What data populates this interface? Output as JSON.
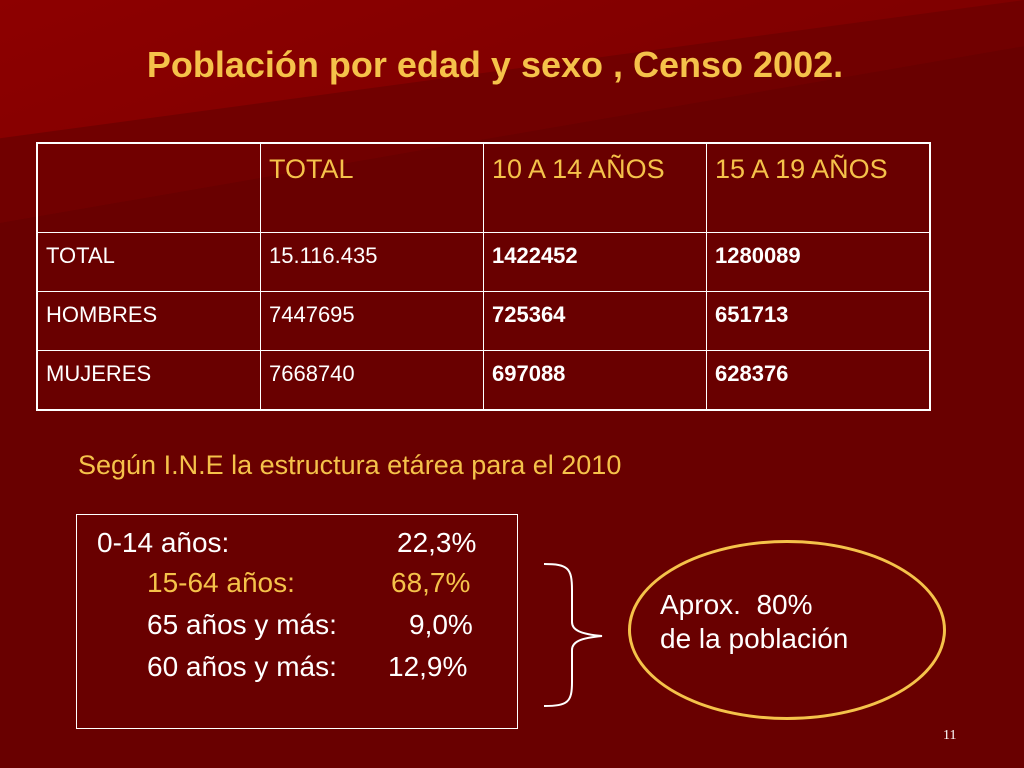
{
  "slide": {
    "title": "Población por edad y sexo , Censo 2002.",
    "page_number": "11"
  },
  "table": {
    "headers": [
      "",
      "TOTAL",
      "10 A 14 AÑOS",
      "15 A 19 AÑOS"
    ],
    "rows": [
      {
        "label": "TOTAL",
        "total": "15.116.435",
        "age_10_14": "1422452",
        "age_15_19": "1280089"
      },
      {
        "label": "HOMBRES",
        "total": "7447695",
        "age_10_14": "725364",
        "age_15_19": "651713"
      },
      {
        "label": "MUJERES",
        "total": "7668740",
        "age_10_14": "697088",
        "age_15_19": "628376"
      }
    ]
  },
  "source_text": {
    "prefix": "Según I.N.",
    "e": "E",
    "suffix": " la estructura etárea para el 2010"
  },
  "age_structure": [
    {
      "label": "0-14 años:",
      "value": "22,3%",
      "highlight": false
    },
    {
      "label": "15-64 años:",
      "value": "68,7%",
      "highlight": true
    },
    {
      "label": "65 años y más:",
      "value": "9,0%",
      "highlight": false
    },
    {
      "label": "60 años y más:",
      "value": "12,9%",
      "highlight": false
    }
  ],
  "callout": {
    "line1": "Aprox.  80%",
    "line2": "de la población"
  },
  "colors": {
    "background": "#7a0000",
    "accent": "#f5c24a",
    "text": "#ffffff"
  }
}
